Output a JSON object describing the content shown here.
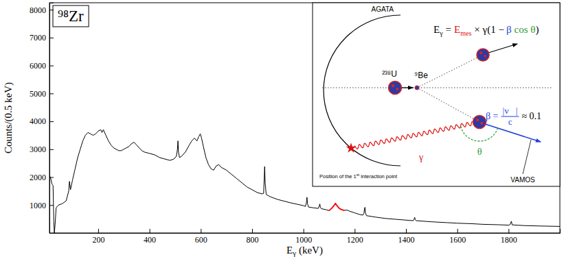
{
  "chart_data": {
    "type": "line",
    "title": "⁹⁸Zr",
    "x_label": "Eγ (keV)",
    "y_label": "Counts/(0.5 keV)",
    "xlim": [
      10,
      2000
    ],
    "ylim": [
      0,
      8250
    ],
    "xticks": [
      200,
      400,
      600,
      800,
      1000,
      1200,
      1400,
      1600,
      1800
    ],
    "yticks": [
      1000,
      2000,
      3000,
      4000,
      5000,
      6000,
      7000,
      8000
    ],
    "series": [
      {
        "color": "#000000",
        "x": [
          11,
          15,
          20,
          24,
          27,
          29,
          32,
          36,
          45,
          60,
          75,
          85,
          88,
          92,
          100,
          110,
          120,
          130,
          140,
          150,
          160,
          170,
          180,
          190,
          200,
          210,
          215,
          220,
          230,
          240,
          250,
          260,
          270,
          280,
          290,
          300,
          310,
          320,
          330,
          340,
          350,
          360,
          370,
          380,
          400,
          420,
          440,
          460,
          480,
          495,
          505,
          509,
          511,
          513,
          517,
          525,
          540,
          555,
          565,
          575,
          585,
          592,
          598,
          603,
          610,
          620,
          630,
          640,
          650,
          660,
          670,
          680,
          690,
          700,
          720,
          740,
          760,
          780,
          800,
          820,
          838,
          845,
          847,
          849,
          851,
          855,
          870,
          900,
          950,
          1000,
          1008,
          1012,
          1014,
          1016,
          1020,
          1040,
          1058,
          1062,
          1064,
          1066,
          1070,
          1090,
          1100,
          1110,
          1120,
          1125,
          1130,
          1140,
          1150,
          1160,
          1170,
          1180,
          1200,
          1220,
          1232,
          1236,
          1238,
          1240,
          1242,
          1246,
          1280,
          1320,
          1360,
          1400,
          1428,
          1432,
          1434,
          1436,
          1440,
          1500,
          1560,
          1600,
          1660,
          1700,
          1760,
          1800,
          1806,
          1809,
          1811,
          1814,
          1860,
          1920,
          2000
        ],
        "values": [
          2050,
          1950,
          1750,
          1700,
          400,
          0,
          300,
          900,
          1000,
          1050,
          1150,
          1500,
          1850,
          1550,
          1900,
          2300,
          2700,
          3000,
          3300,
          3500,
          3600,
          3550,
          3500,
          3550,
          3650,
          3700,
          3600,
          3700,
          3500,
          3300,
          3150,
          3050,
          3000,
          2950,
          2950,
          3000,
          3050,
          3100,
          3200,
          3250,
          3150,
          3050,
          2950,
          2900,
          2850,
          2800,
          2700,
          2650,
          2600,
          2650,
          2750,
          3000,
          3300,
          2900,
          2700,
          2750,
          2900,
          3150,
          3300,
          3400,
          3300,
          3450,
          3550,
          3400,
          3100,
          2700,
          2450,
          2300,
          2250,
          2400,
          2450,
          2350,
          2300,
          2250,
          2100,
          1950,
          1800,
          1650,
          1550,
          1450,
          1400,
          1420,
          1900,
          2380,
          1800,
          1380,
          1300,
          1200,
          1080,
          980,
          950,
          1100,
          1280,
          1050,
          930,
          900,
          880,
          960,
          1040,
          930,
          870,
          830,
          800,
          880,
          990,
          1060,
          990,
          880,
          830,
          810,
          820,
          780,
          720,
          660,
          640,
          700,
          850,
          920,
          720,
          620,
          570,
          520,
          490,
          460,
          440,
          500,
          560,
          470,
          440,
          400,
          370,
          350,
          330,
          310,
          295,
          280,
          300,
          380,
          420,
          290,
          265,
          250,
          235
        ]
      },
      {
        "color": "#ff0000",
        "x": [
          1100,
          1110,
          1120,
          1125,
          1130,
          1140,
          1150,
          1160
        ],
        "values": [
          800,
          880,
          990,
          1060,
          990,
          880,
          830,
          810
        ]
      }
    ]
  },
  "inset": {
    "detector": "AGATA",
    "formula": {
      "lhs": {
        "base": "E",
        "sub": "γ"
      },
      "eq": "=",
      "emes": {
        "base": "E",
        "sub": "mes"
      },
      "factor": "× γ(1 −",
      "beta": "β",
      "cos": "cos θ",
      "close": ")"
    },
    "beam": "²³⁸U",
    "target": "⁹Be",
    "beta_def": {
      "lhs": "β =",
      "num": "|v⃗|",
      "den": "c",
      "approx": "≈ 0.1"
    },
    "gamma": "γ",
    "angle": "θ",
    "interaction": {
      "text": "Position of the 1",
      "sup": "st",
      "rest": " interaction point"
    },
    "spectrometer": "VAMOS"
  }
}
